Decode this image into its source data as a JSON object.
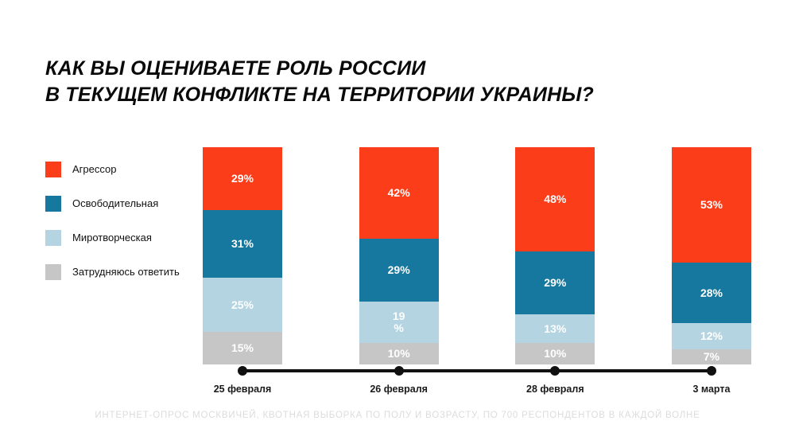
{
  "title": {
    "line1": "КАК ВЫ ОЦЕНИВАЕТЕ РОЛЬ РОССИИ",
    "line2": "В ТЕКУЩЕМ КОНФЛИКТЕ НА ТЕРРИТОРИИ УКРАИНЫ?"
  },
  "footer": "ИНТЕРНЕТ-ОПРОС МОСКВИЧЕЙ, КВОТНАЯ ВЫБОРКА ПО ПОЛУ И ВОЗРАСТУ, ПО 700 РЕСПОНДЕНТОВ В КАЖДОЙ ВОЛНЕ",
  "colors": {
    "aggressor_red": "#fb3d1a",
    "liberating_blue": "#16789e",
    "peacekeeping_lightblue": "#b3d4e0",
    "undecided_gray": "#c6c6c6",
    "axis_black": "#111111",
    "footnote_gray": "#dcdcdc"
  },
  "chart_data": {
    "type": "bar",
    "subtype": "stacked-100-percent",
    "title": "КАК ВЫ ОЦЕНИВАЕТЕ РОЛЬ РОССИИ В ТЕКУЩЕМ КОНФЛИКТЕ НА ТЕРРИТОРИИ УКРАИНЫ?",
    "categories": [
      "25 февраля",
      "26 февраля",
      "28 февраля",
      "3 марта"
    ],
    "series": [
      {
        "name": "Агрессор",
        "color": "#fb3d1a",
        "values": [
          29,
          42,
          48,
          53
        ],
        "labels": [
          "29%",
          "42%",
          "48%",
          "53%"
        ]
      },
      {
        "name": "Освободительная",
        "color": "#16789e",
        "values": [
          31,
          29,
          29,
          28
        ],
        "labels": [
          "31%",
          "29%",
          "29%",
          "28%"
        ]
      },
      {
        "name": "Миротворческая",
        "color": "#b3d4e0",
        "values": [
          25,
          19,
          13,
          12
        ],
        "labels": [
          "25%",
          "19\n%",
          "13%",
          "12%"
        ]
      },
      {
        "name": "Затрудняюсь ответить",
        "color": "#c6c6c6",
        "values": [
          15,
          10,
          10,
          7
        ],
        "labels": [
          "15%",
          "10%",
          "10%",
          "7%"
        ]
      }
    ],
    "stack_order_top_to_bottom": [
      "Агрессор",
      "Освободительная",
      "Миротворческая",
      "Затрудняюсь ответить"
    ],
    "ylim": [
      0,
      100
    ],
    "grid": false,
    "legend_position": "left",
    "xlabel": "",
    "ylabel": ""
  }
}
